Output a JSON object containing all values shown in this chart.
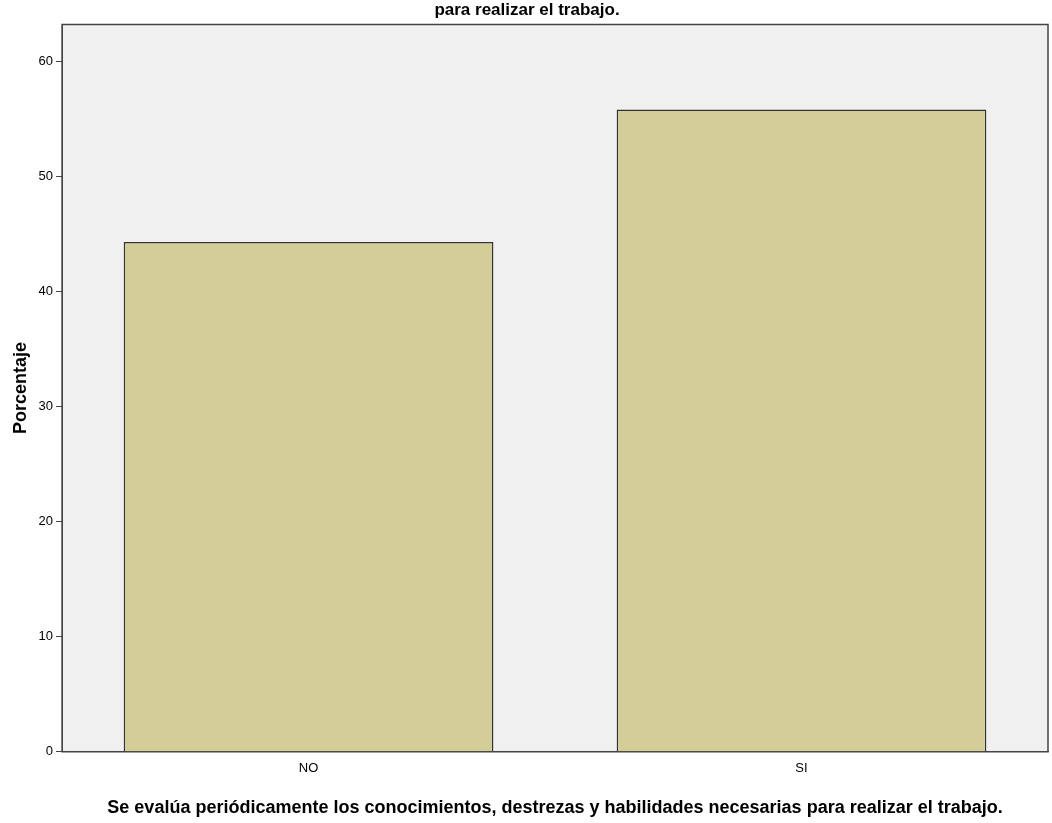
{
  "chart_data": {
    "type": "bar",
    "title": "para realizar el trabajo.",
    "xlabel": "Se evalúa periódicamente los conocimientos, destrezas y habilidades necesarias para realizar el trabajo.",
    "ylabel": "Porcentaje",
    "categories": [
      "NO",
      "SI"
    ],
    "values": [
      44.3,
      55.8
    ],
    "color": "#d3ce97",
    "ylim": [
      0,
      63.2
    ],
    "yticks": [
      0,
      10,
      20,
      30,
      40,
      50,
      60
    ],
    "grid": false,
    "legend": false
  }
}
